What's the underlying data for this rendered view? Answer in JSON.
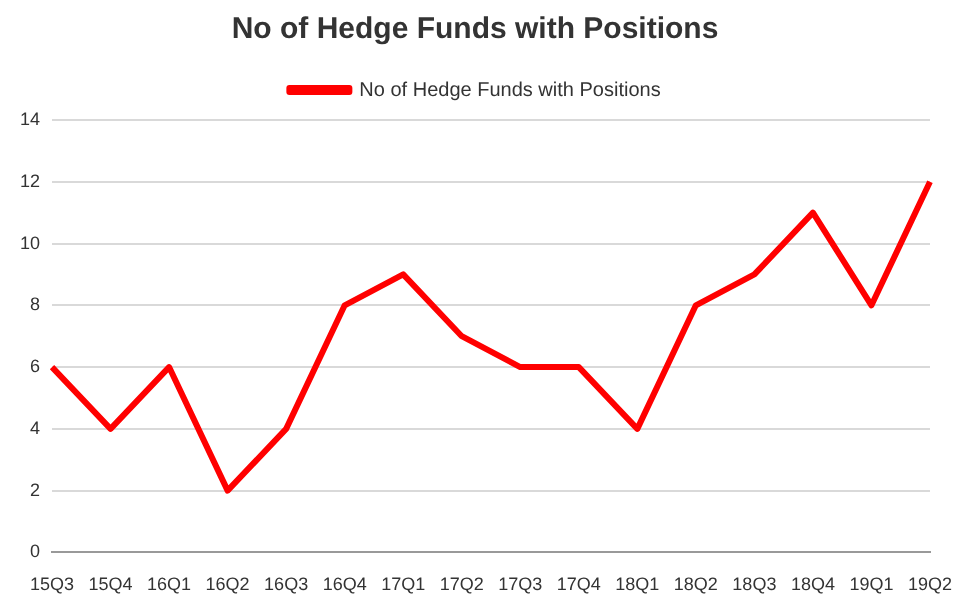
{
  "chart_data": {
    "type": "line",
    "title": "No of Hedge Funds with Positions",
    "categories": [
      "15Q3",
      "15Q4",
      "16Q1",
      "16Q2",
      "16Q3",
      "16Q4",
      "17Q1",
      "17Q2",
      "17Q3",
      "17Q4",
      "18Q1",
      "18Q2",
      "18Q3",
      "18Q4",
      "19Q1",
      "19Q2"
    ],
    "series": [
      {
        "name": "No of Hedge Funds with Positions",
        "color": "#ff0000",
        "values": [
          6,
          4,
          6,
          2,
          4,
          8,
          9,
          7,
          6,
          6,
          4,
          8,
          9,
          11,
          8,
          12
        ]
      }
    ],
    "ylim": [
      0,
      14
    ],
    "yticks": [
      0,
      2,
      4,
      6,
      8,
      10,
      12,
      14
    ],
    "grid": "y",
    "legend": "top",
    "marker": "none",
    "line_style": "solid"
  }
}
